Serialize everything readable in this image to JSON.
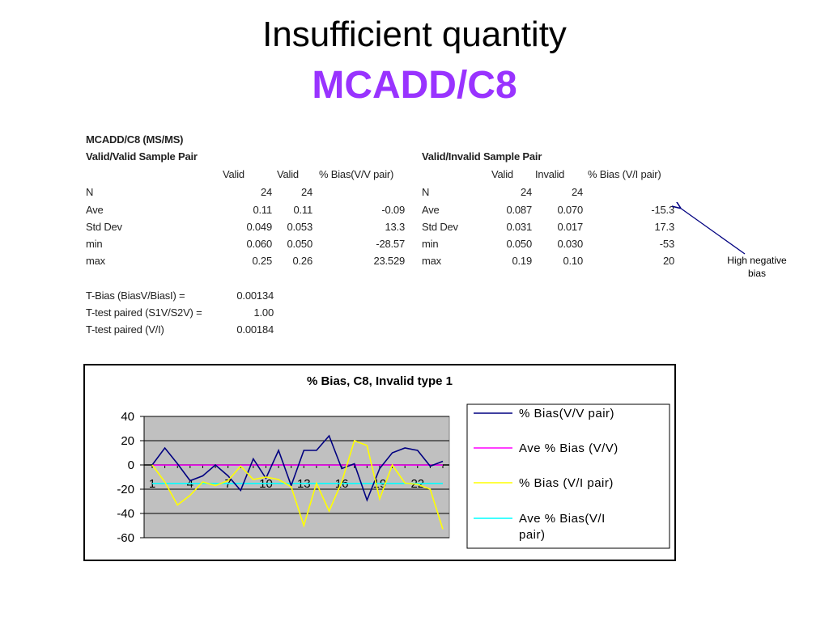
{
  "slide": {
    "title_line1": "Insufficient quantity",
    "title_line2": "MCADD/C8",
    "title2_color": "#9933ff"
  },
  "stats": {
    "header": "MCADD/C8 (MS/MS)",
    "vv_title": "Valid/Valid Sample Pair",
    "vi_title": "Valid/Invalid Sample Pair",
    "vv_cols": [
      "Valid",
      "Valid",
      "% Bias(V/V pair)"
    ],
    "vi_cols": [
      "Valid",
      "Invalid",
      "% Bias (V/I pair)"
    ],
    "row_labels": [
      "N",
      "Ave",
      "Std Dev",
      "min",
      "max"
    ],
    "vv_rows": [
      [
        "24",
        "24",
        ""
      ],
      [
        "0.11",
        "0.11",
        "-0.09"
      ],
      [
        "0.049",
        "0.053",
        "13.3"
      ],
      [
        "0.060",
        "0.050",
        "-28.57"
      ],
      [
        "0.25",
        "0.26",
        "23.529"
      ]
    ],
    "vi_rows": [
      [
        "24",
        "24",
        ""
      ],
      [
        "0.087",
        "0.070",
        "-15.3"
      ],
      [
        "0.031",
        "0.017",
        "17.3"
      ],
      [
        "0.050",
        "0.030",
        "-53"
      ],
      [
        "0.19",
        "0.10",
        "20"
      ]
    ],
    "ttests": [
      {
        "label": "T-Bias (BiasV/BiasI) =",
        "value": "0.00134"
      },
      {
        "label": "T-test paired (S1V/S2V) =",
        "value": "1.00"
      },
      {
        "label": "T-test paired (V/I)",
        "value": "0.00184"
      }
    ]
  },
  "annotation": {
    "line1": "High  negative",
    "line2": "bias"
  },
  "chart_data": {
    "type": "line",
    "title": "% Bias, C8, Invalid type 1",
    "xlabel": "",
    "ylabel": "",
    "ylim": [
      -60,
      40
    ],
    "yticks": [
      40,
      20,
      0,
      -20,
      -40,
      -60
    ],
    "x": [
      1,
      2,
      3,
      4,
      5,
      6,
      7,
      8,
      9,
      10,
      11,
      12,
      13,
      14,
      15,
      16,
      17,
      18,
      19,
      20,
      21,
      22,
      23,
      24
    ],
    "x_tick_labels": [
      "1",
      "4",
      "7",
      "10",
      "13",
      "16",
      "19",
      "22"
    ],
    "x_tick_values": [
      1,
      4,
      7,
      10,
      13,
      16,
      19,
      22
    ],
    "plot_background": "#c0c0c0",
    "grid": true,
    "legend_position": "right",
    "series": [
      {
        "name": "% Bias(V/V pair)",
        "color": "#000080",
        "values": [
          0,
          14,
          1,
          -13,
          -9,
          0,
          -9,
          -21,
          5,
          -11,
          12,
          -17,
          12,
          12,
          24,
          -3,
          1,
          -29,
          -3,
          10,
          14,
          12,
          -1,
          3
        ]
      },
      {
        "name": "Ave % Bias (V/V)",
        "color": "#ff00ff",
        "values": [
          -0.09,
          -0.09,
          -0.09,
          -0.09,
          -0.09,
          -0.09,
          -0.09,
          -0.09,
          -0.09,
          -0.09,
          -0.09,
          -0.09,
          -0.09,
          -0.09,
          -0.09,
          -0.09,
          -0.09,
          -0.09,
          -0.09,
          -0.09,
          -0.09,
          -0.09,
          -0.09,
          -0.09
        ]
      },
      {
        "name": "% Bias (V/I pair)",
        "color": "#ffff00",
        "values": [
          0,
          -14,
          -33,
          -25,
          -14,
          -17,
          -13,
          -1,
          -12,
          -10,
          -12,
          -18,
          -50,
          -15,
          -38,
          -14,
          20,
          16,
          -28,
          0,
          -15,
          -16,
          -20,
          -53
        ]
      },
      {
        "name": "Ave % Bias(V/I pair)",
        "color": "#00ffff",
        "values": [
          -15.3,
          -15.3,
          -15.3,
          -15.3,
          -15.3,
          -15.3,
          -15.3,
          -15.3,
          -15.3,
          -15.3,
          -15.3,
          -15.3,
          -15.3,
          -15.3,
          -15.3,
          -15.3,
          -15.3,
          -15.3,
          -15.3,
          -15.3,
          -15.3,
          -15.3,
          -15.3,
          -15.3
        ]
      }
    ],
    "legend_lines": [
      [
        "% Bias(V/V pair)"
      ],
      [
        "Ave % Bias (V/V)"
      ],
      [
        "% Bias (V/I pair)"
      ],
      [
        "Ave % Bias(V/I",
        "pair)"
      ]
    ]
  }
}
